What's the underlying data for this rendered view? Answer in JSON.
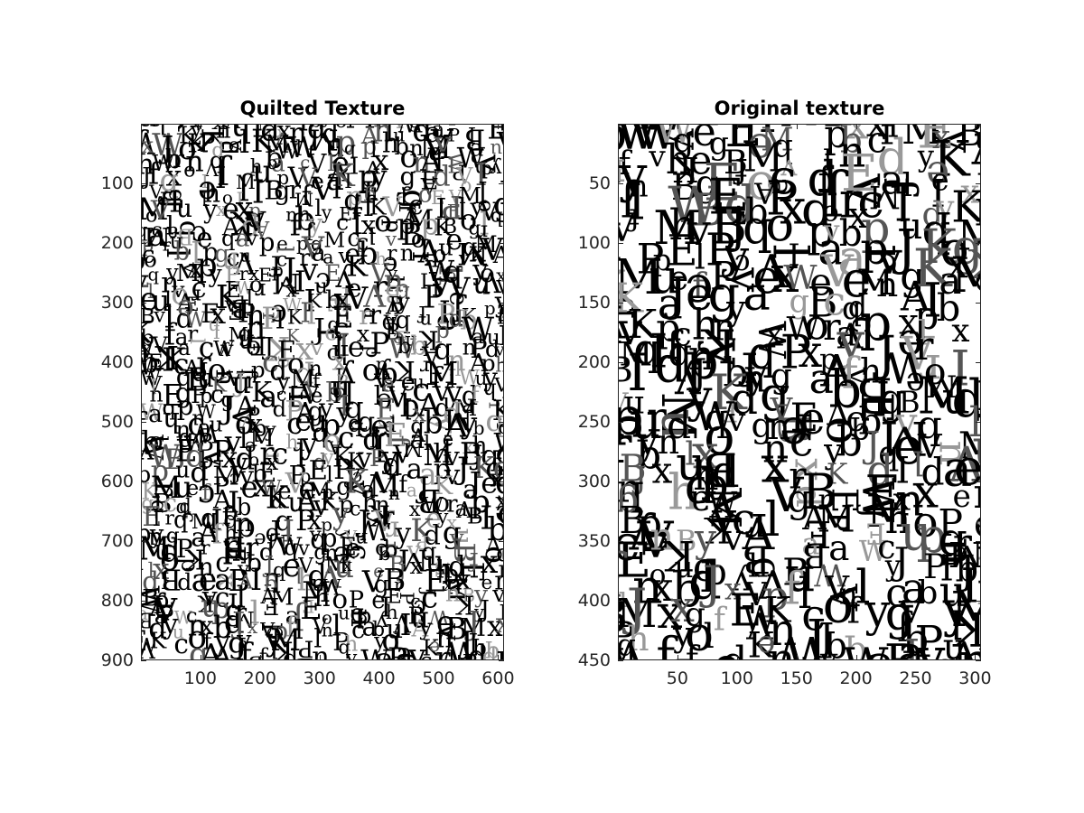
{
  "panels": [
    {
      "title": "Quilted Texture",
      "x_ticks": [
        "100",
        "200",
        "300",
        "400",
        "500",
        "600"
      ],
      "x_tick_values": [
        100,
        200,
        300,
        400,
        500,
        600
      ],
      "x_range": [
        0,
        610
      ],
      "y_ticks": [
        "100",
        "200",
        "300",
        "400",
        "500",
        "600",
        "700",
        "800",
        "900"
      ],
      "y_tick_values": [
        100,
        200,
        300,
        400,
        500,
        600,
        700,
        800,
        900
      ],
      "y_range": [
        0,
        900
      ],
      "y_reversed": true,
      "image_content": "black and white serif letter texture, dense tiling"
    },
    {
      "title": "Original texture",
      "x_ticks": [
        "50",
        "100",
        "150",
        "200",
        "250",
        "300"
      ],
      "x_tick_values": [
        50,
        100,
        150,
        200,
        250,
        300
      ],
      "x_range": [
        0,
        305
      ],
      "y_ticks": [
        "50",
        "100",
        "150",
        "200",
        "250",
        "300",
        "350",
        "400",
        "450"
      ],
      "y_tick_values": [
        50,
        100,
        150,
        200,
        250,
        300,
        350,
        400,
        450
      ],
      "y_range": [
        0,
        450
      ],
      "y_reversed": true,
      "image_content": "black and white serif letter texture, larger tiling"
    }
  ],
  "colors": {
    "ink": "#000000",
    "paper": "#ffffff",
    "axis": "#262626"
  },
  "texture_glyphs": [
    "B",
    "f",
    "h",
    "u",
    "J",
    "d",
    "l",
    "g",
    "o",
    "K",
    "W",
    "b",
    "v",
    "a",
    "E",
    "e",
    "x",
    "A",
    "q",
    "M",
    "V",
    "P",
    "I",
    "y",
    "c",
    "n",
    "p",
    "r"
  ]
}
